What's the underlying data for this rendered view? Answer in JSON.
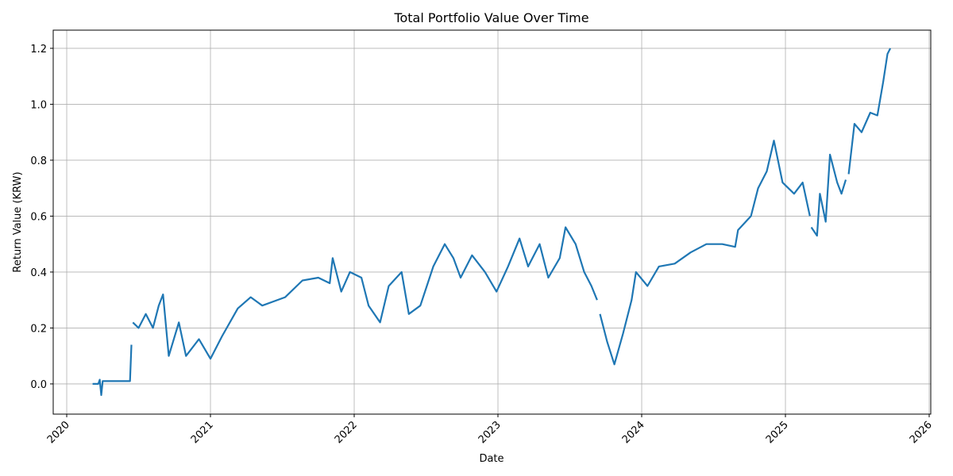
{
  "chart_data": {
    "type": "line",
    "title": "Total Portfolio Value Over Time",
    "x_label": "Date",
    "y_label": "Return Value (KRW)",
    "x": [
      2020.18,
      2020.22,
      2020.23,
      2020.24,
      2020.25,
      2020.44,
      2020.45,
      null,
      2020.46,
      2020.5,
      2020.55,
      2020.6,
      2020.64,
      2020.67,
      2020.71,
      2020.78,
      2020.83,
      2020.92,
      2021.0,
      2021.08,
      2021.19,
      2021.28,
      2021.36,
      2021.52,
      2021.64,
      2021.75,
      2021.83,
      2021.85,
      2021.91,
      2021.97,
      2022.05,
      2022.1,
      2022.18,
      2022.24,
      2022.33,
      2022.38,
      2022.46,
      2022.55,
      2022.63,
      2022.69,
      2022.74,
      2022.82,
      2022.91,
      2022.99,
      2023.07,
      2023.15,
      2023.21,
      2023.29,
      2023.35,
      2023.43,
      2023.47,
      2023.54,
      2023.6,
      2023.65,
      2023.69,
      null,
      2023.71,
      2023.76,
      2023.81,
      2023.87,
      2023.93,
      2023.96,
      2024.04,
      2024.12,
      2024.23,
      2024.34,
      2024.45,
      2024.56,
      2024.65,
      2024.67,
      2024.76,
      2024.81,
      2024.87,
      2024.92,
      2024.98,
      2025.06,
      2025.12,
      2025.17,
      null,
      2025.18,
      2025.22,
      2025.24,
      2025.28,
      2025.31,
      2025.36,
      2025.39,
      2025.42,
      null,
      2025.44,
      2025.48,
      2025.53,
      2025.59,
      2025.64,
      2025.68,
      2025.71,
      2025.73
    ],
    "values": [
      0.0,
      0.0,
      0.015,
      -0.04,
      0.01,
      0.01,
      0.14,
      null,
      0.22,
      0.2,
      0.25,
      0.2,
      0.28,
      0.32,
      0.1,
      0.22,
      0.1,
      0.16,
      0.09,
      0.17,
      0.27,
      0.31,
      0.28,
      0.31,
      0.37,
      0.38,
      0.36,
      0.45,
      0.33,
      0.4,
      0.38,
      0.28,
      0.22,
      0.35,
      0.4,
      0.25,
      0.28,
      0.42,
      0.5,
      0.45,
      0.38,
      0.46,
      0.4,
      0.33,
      0.42,
      0.52,
      0.42,
      0.5,
      0.38,
      0.45,
      0.56,
      0.5,
      0.4,
      0.35,
      0.3,
      null,
      0.25,
      0.15,
      0.07,
      0.18,
      0.3,
      0.4,
      0.35,
      0.42,
      0.43,
      0.47,
      0.5,
      0.5,
      0.49,
      0.55,
      0.6,
      0.7,
      0.76,
      0.87,
      0.72,
      0.68,
      0.72,
      0.6,
      null,
      0.56,
      0.53,
      0.68,
      0.58,
      0.82,
      0.72,
      0.68,
      0.73,
      null,
      0.75,
      0.93,
      0.9,
      0.97,
      0.96,
      1.08,
      1.18,
      1.2
    ],
    "color": "#1f77b4",
    "xlim": [
      2019.906,
      2026.011
    ],
    "xticks": [
      2020,
      2021,
      2022,
      2023,
      2024,
      2025,
      2026
    ],
    "ylim": [
      -0.108,
      1.265
    ],
    "yticks": [
      {
        "value": 0,
        "label": "0.0"
      },
      0.2,
      0.4,
      0.6,
      0.8,
      {
        "value": 1,
        "label": "1.0"
      },
      1.2
    ],
    "grid": true
  }
}
